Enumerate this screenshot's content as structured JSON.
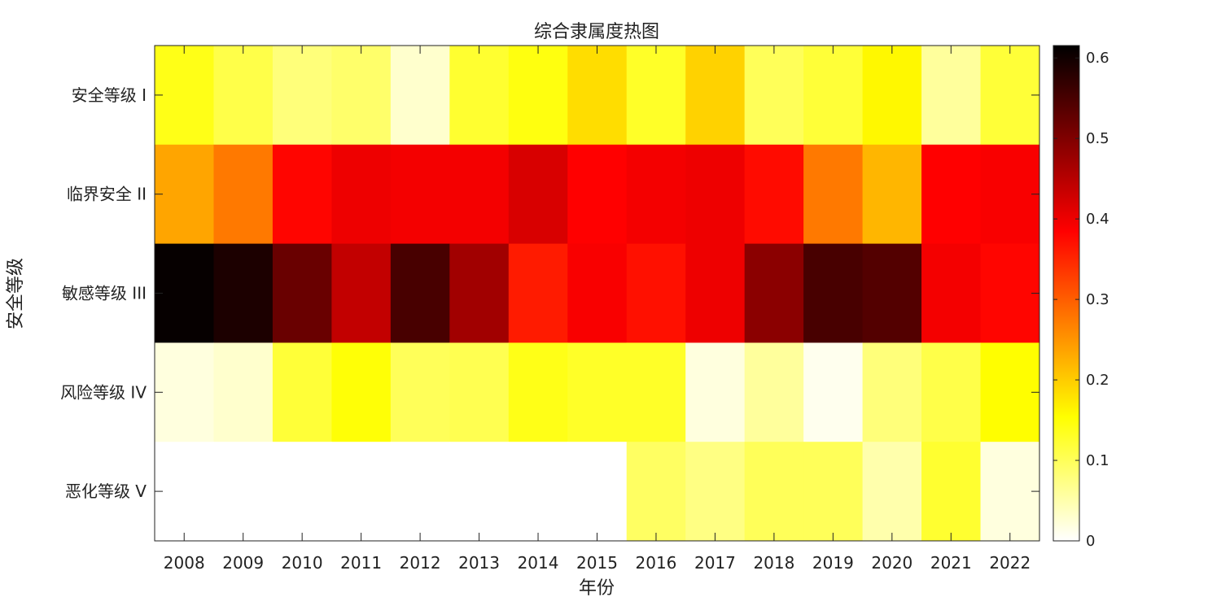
{
  "chart_data": {
    "type": "heatmap",
    "title": "综合隶属度热图",
    "xlabel": "年份",
    "ylabel": "安全等级",
    "x": [
      "2008",
      "2009",
      "2010",
      "2011",
      "2012",
      "2013",
      "2014",
      "2015",
      "2016",
      "2017",
      "2018",
      "2019",
      "2020",
      "2021",
      "2022"
    ],
    "y": [
      "安全等级 I",
      "临界安全 II",
      "敏感等级 III",
      "风险等级 IV",
      "恶化等级 V"
    ],
    "values": [
      [
        0.14,
        0.11,
        0.08,
        0.09,
        0.03,
        0.125,
        0.145,
        0.185,
        0.13,
        0.195,
        0.1,
        0.12,
        0.16,
        0.06,
        0.12
      ],
      [
        0.235,
        0.275,
        0.38,
        0.4,
        0.395,
        0.395,
        0.42,
        0.385,
        0.395,
        0.4,
        0.375,
        0.275,
        0.22,
        0.385,
        0.39
      ],
      [
        0.61,
        0.59,
        0.52,
        0.44,
        0.55,
        0.47,
        0.36,
        0.39,
        0.37,
        0.4,
        0.49,
        0.55,
        0.54,
        0.395,
        0.38
      ],
      [
        0.02,
        0.03,
        0.12,
        0.15,
        0.1,
        0.105,
        0.14,
        0.13,
        0.13,
        0.02,
        0.06,
        0.01,
        0.08,
        0.11,
        0.155
      ],
      [
        0.0,
        0.0,
        0.0,
        0.0,
        0.0,
        0.0,
        0.0,
        0.0,
        0.095,
        0.075,
        0.1,
        0.1,
        0.05,
        0.125,
        0.02
      ]
    ],
    "colorbar": {
      "range": [
        0,
        0.6154
      ],
      "ticks": [
        "0",
        "0.1",
        "0.2",
        "0.3",
        "0.4",
        "0.5",
        "0.6"
      ],
      "tick_values": [
        0,
        0.1,
        0.2,
        0.3,
        0.4,
        0.5,
        0.6
      ]
    },
    "colormap": "hot-reversed",
    "grid": false,
    "legend": "colorbar-right"
  }
}
